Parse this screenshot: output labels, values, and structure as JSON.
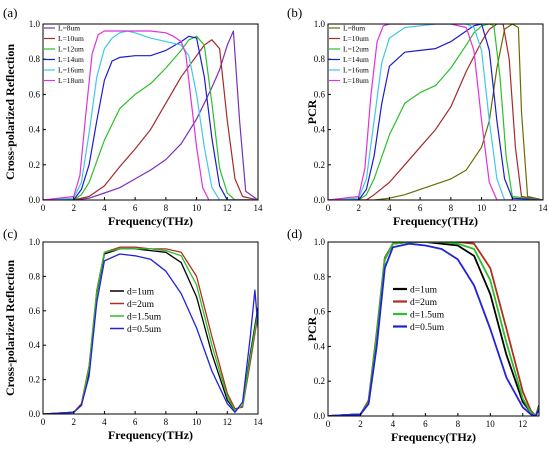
{
  "figure": {
    "panels": [
      "(a)",
      "(b)",
      "(c)",
      "(d)"
    ]
  },
  "chart_data": [
    {
      "panel": "(a)",
      "type": "line",
      "xlabel": "Frequency(THz)",
      "ylabel": "Cross-polarized Reflection",
      "xlim": [
        0,
        14
      ],
      "ylim": [
        0,
        1.0
      ],
      "xticks": [
        "0",
        "2",
        "4",
        "6",
        "8",
        "10",
        "12",
        "14"
      ],
      "yticks": [
        "0.0",
        "0.2",
        "0.4",
        "0.6",
        "0.8",
        "1.0"
      ],
      "legend_position": "top-left",
      "series": [
        {
          "name": "L=8um",
          "color": "#7b2fbe",
          "x": [
            0,
            2,
            3,
            4,
            5,
            6,
            7,
            8,
            9,
            10,
            10.5,
            11,
            11.5,
            12,
            12.4,
            12.8,
            13.2,
            14
          ],
          "y": [
            0,
            0,
            0.01,
            0.04,
            0.07,
            0.12,
            0.17,
            0.23,
            0.32,
            0.46,
            0.55,
            0.64,
            0.74,
            0.88,
            0.96,
            0.45,
            0.05,
            0
          ]
        },
        {
          "name": "L=10um",
          "color": "#a52a2a",
          "x": [
            0,
            2,
            3,
            4,
            5,
            6,
            7,
            8,
            9,
            10,
            10.5,
            11,
            11.5,
            12,
            12.5,
            13,
            14
          ],
          "y": [
            0,
            0,
            0.02,
            0.08,
            0.19,
            0.29,
            0.4,
            0.55,
            0.7,
            0.82,
            0.88,
            0.91,
            0.86,
            0.45,
            0.12,
            0.02,
            0
          ]
        },
        {
          "name": "L=12um",
          "color": "#2bbf2b",
          "x": [
            0,
            2,
            2.5,
            3,
            4,
            5,
            6,
            7,
            8,
            9,
            9.5,
            10,
            10.5,
            11,
            11.5,
            12,
            12.5,
            14
          ],
          "y": [
            0,
            0,
            0.03,
            0.1,
            0.34,
            0.52,
            0.6,
            0.66,
            0.75,
            0.85,
            0.91,
            0.93,
            0.88,
            0.55,
            0.18,
            0.04,
            0,
            0
          ]
        },
        {
          "name": "L=14um",
          "color": "#1c1ccc",
          "x": [
            0,
            2,
            2.5,
            3,
            3.5,
            4,
            4.5,
            5,
            6,
            7,
            8,
            9,
            9.5,
            10,
            10.5,
            11,
            11.5,
            12,
            14
          ],
          "y": [
            0,
            0,
            0.06,
            0.2,
            0.45,
            0.68,
            0.79,
            0.81,
            0.82,
            0.82,
            0.85,
            0.9,
            0.93,
            0.92,
            0.7,
            0.35,
            0.08,
            0,
            0
          ]
        },
        {
          "name": "L=16um",
          "color": "#40c8e8",
          "x": [
            0,
            2,
            2.5,
            3,
            3.5,
            4,
            4.5,
            5,
            5.5,
            6,
            7,
            8,
            9,
            9.5,
            10,
            10.5,
            11,
            11.5,
            14
          ],
          "y": [
            0,
            0.01,
            0.1,
            0.38,
            0.7,
            0.86,
            0.92,
            0.95,
            0.96,
            0.95,
            0.92,
            0.9,
            0.88,
            0.82,
            0.6,
            0.3,
            0.07,
            0,
            0
          ]
        },
        {
          "name": "L=18um",
          "color": "#dd33dd",
          "x": [
            0,
            2,
            2.4,
            2.8,
            3.2,
            3.6,
            4,
            5,
            6,
            7,
            8,
            8.5,
            9,
            9.3,
            9.6,
            10,
            10.4,
            10.8,
            14
          ],
          "y": [
            0,
            0.02,
            0.14,
            0.5,
            0.83,
            0.94,
            0.96,
            0.96,
            0.96,
            0.96,
            0.95,
            0.93,
            0.9,
            0.83,
            0.6,
            0.3,
            0.07,
            0,
            0
          ]
        }
      ]
    },
    {
      "panel": "(b)",
      "type": "line",
      "xlabel": "Frequency(THz)",
      "ylabel": "PCR",
      "xlim": [
        0,
        14
      ],
      "ylim": [
        0,
        1.0
      ],
      "xticks": [
        "0",
        "2",
        "4",
        "6",
        "8",
        "10",
        "12",
        "14"
      ],
      "yticks": [
        "0.0",
        "0.2",
        "0.4",
        "0.6",
        "0.8",
        "1.0"
      ],
      "legend_position": "top-left",
      "series": [
        {
          "name": "L=8um",
          "color": "#6b6b00",
          "x": [
            0,
            3,
            4,
            5,
            6,
            7,
            8,
            9,
            10,
            10.5,
            11,
            11.5,
            12,
            12.4,
            12.6,
            13,
            14
          ],
          "y": [
            0,
            0,
            0.01,
            0.03,
            0.06,
            0.09,
            0.12,
            0.17,
            0.3,
            0.45,
            0.75,
            0.97,
            1.0,
            0.98,
            0.5,
            0.02,
            0
          ]
        },
        {
          "name": "L=10um",
          "color": "#a52a2a",
          "x": [
            0,
            2.5,
            3,
            4,
            5,
            6,
            7,
            8,
            9,
            10,
            10.5,
            11,
            11.4,
            11.8,
            12.2,
            12.6,
            14
          ],
          "y": [
            0,
            0,
            0.03,
            0.1,
            0.2,
            0.3,
            0.4,
            0.53,
            0.73,
            0.9,
            0.97,
            1.0,
            1.0,
            0.8,
            0.3,
            0.02,
            0
          ]
        },
        {
          "name": "L=12um",
          "color": "#2bbf2b",
          "x": [
            0,
            2,
            2.5,
            3,
            4,
            5,
            6,
            7,
            8,
            9,
            9.5,
            10,
            10.5,
            10.8,
            11.2,
            11.6,
            12,
            14
          ],
          "y": [
            0,
            0,
            0.03,
            0.12,
            0.37,
            0.55,
            0.61,
            0.65,
            0.75,
            0.88,
            0.95,
            0.99,
            1.0,
            0.99,
            0.7,
            0.25,
            0.02,
            0
          ]
        },
        {
          "name": "L=14um",
          "color": "#1c1ccc",
          "x": [
            0,
            2,
            2.5,
            3,
            3.5,
            4,
            5,
            6,
            7,
            8,
            9,
            9.5,
            10,
            10.5,
            11,
            11.5,
            12,
            14
          ],
          "y": [
            0,
            0,
            0.06,
            0.25,
            0.55,
            0.76,
            0.84,
            0.85,
            0.86,
            0.9,
            0.96,
            0.99,
            1.0,
            0.85,
            0.45,
            0.12,
            0.01,
            0
          ]
        },
        {
          "name": "L=16um",
          "color": "#40c8e8",
          "x": [
            0,
            2,
            2.5,
            3,
            3.5,
            4,
            5,
            6,
            7,
            8,
            9,
            9.5,
            10,
            10.5,
            11,
            11.5,
            14
          ],
          "y": [
            0,
            0.01,
            0.12,
            0.45,
            0.78,
            0.92,
            0.98,
            0.99,
            1.0,
            1.0,
            1.0,
            0.98,
            0.85,
            0.45,
            0.12,
            0,
            0
          ]
        },
        {
          "name": "L=18um",
          "color": "#dd33dd",
          "x": [
            0,
            2,
            2.4,
            2.8,
            3.2,
            3.6,
            4,
            5,
            6,
            7,
            8,
            9,
            9.5,
            10,
            10.5,
            11,
            14
          ],
          "y": [
            0,
            0.02,
            0.18,
            0.6,
            0.9,
            0.99,
            1.0,
            1.0,
            1.0,
            1.0,
            1.0,
            0.98,
            0.85,
            0.45,
            0.1,
            0,
            0
          ]
        }
      ]
    },
    {
      "panel": "(c)",
      "type": "line",
      "xlabel": "Frequency(THz)",
      "ylabel": "Cross-polarized Reflection",
      "xlim": [
        0,
        14
      ],
      "ylim": [
        0,
        1.0
      ],
      "xticks": [
        "0",
        "2",
        "4",
        "6",
        "8",
        "10",
        "12",
        "14"
      ],
      "yticks": [
        "0.0",
        "0.2",
        "0.4",
        "0.6",
        "0.8",
        "1.0"
      ],
      "legend_position": "center",
      "series": [
        {
          "name": "d=1um",
          "color": "#000000",
          "x": [
            0,
            2,
            2.5,
            3,
            3.5,
            4,
            5,
            6,
            7,
            8,
            9,
            10,
            11,
            12,
            12.5,
            13,
            13.5,
            14
          ],
          "y": [
            0,
            0.01,
            0.05,
            0.25,
            0.7,
            0.93,
            0.96,
            0.96,
            0.95,
            0.94,
            0.88,
            0.68,
            0.35,
            0.08,
            0.02,
            0.05,
            0.35,
            0.62
          ]
        },
        {
          "name": "d=2um",
          "color": "#b03020",
          "x": [
            0,
            2,
            2.5,
            3,
            3.5,
            4,
            5,
            6,
            7,
            8,
            9,
            10,
            11,
            12,
            12.5,
            13,
            13.5,
            14
          ],
          "y": [
            0,
            0.01,
            0.06,
            0.28,
            0.72,
            0.94,
            0.97,
            0.97,
            0.96,
            0.96,
            0.94,
            0.8,
            0.45,
            0.12,
            0.03,
            0.04,
            0.3,
            0.58
          ]
        },
        {
          "name": "d=1.5um",
          "color": "#2bbf2b",
          "x": [
            0,
            2,
            2.5,
            3,
            3.5,
            4,
            5,
            6,
            7,
            8,
            9,
            10,
            11,
            12,
            12.5,
            13,
            13.5,
            14
          ],
          "y": [
            0,
            0.01,
            0.05,
            0.27,
            0.71,
            0.94,
            0.96,
            0.96,
            0.96,
            0.95,
            0.92,
            0.75,
            0.4,
            0.1,
            0.02,
            0.05,
            0.33,
            0.6
          ]
        },
        {
          "name": "d=0.5um",
          "color": "#2222dd",
          "x": [
            0,
            2,
            2.5,
            3,
            3.5,
            4,
            5,
            6,
            7,
            8,
            9,
            10,
            11,
            12,
            12.5,
            13,
            13.5,
            13.8,
            14
          ],
          "y": [
            0,
            0.01,
            0.05,
            0.22,
            0.65,
            0.89,
            0.93,
            0.92,
            0.9,
            0.83,
            0.7,
            0.5,
            0.25,
            0.06,
            0.01,
            0.07,
            0.45,
            0.72,
            0.5
          ]
        }
      ]
    },
    {
      "panel": "(d)",
      "type": "line",
      "xlabel": "Frequency(THz)",
      "ylabel": "PCR",
      "xlim": [
        0,
        13
      ],
      "ylim": [
        0,
        1.0
      ],
      "xticks": [
        "0",
        "2",
        "4",
        "6",
        "8",
        "10",
        "12"
      ],
      "yticks": [
        "0.0",
        "0.2",
        "0.4",
        "0.6",
        "0.8",
        "1.0"
      ],
      "legend_position": "center",
      "series": [
        {
          "name": "d=1um",
          "color": "#000000",
          "x": [
            0,
            2,
            2.5,
            3,
            3.5,
            4,
            5,
            6,
            7,
            8,
            9,
            10,
            11,
            12,
            12.5,
            12.8,
            13
          ],
          "y": [
            0,
            0.01,
            0.08,
            0.45,
            0.9,
            0.99,
            1.0,
            1.0,
            0.99,
            0.98,
            0.92,
            0.7,
            0.35,
            0.08,
            0.02,
            0,
            0.06
          ]
        },
        {
          "name": "d=2um",
          "color": "#b03020",
          "x": [
            0,
            2,
            2.5,
            3,
            3.5,
            4,
            5,
            6,
            7,
            8,
            9,
            10,
            11,
            12,
            12.5,
            12.8,
            13
          ],
          "y": [
            0,
            0.01,
            0.09,
            0.48,
            0.91,
            0.99,
            1.0,
            1.0,
            1.0,
            1.0,
            0.99,
            0.85,
            0.5,
            0.14,
            0.03,
            0,
            0.05
          ]
        },
        {
          "name": "d=1.5um",
          "color": "#2bbf2b",
          "x": [
            0,
            2,
            2.5,
            3,
            3.5,
            4,
            5,
            6,
            7,
            8,
            9,
            10,
            11,
            12,
            12.5,
            12.8,
            13
          ],
          "y": [
            0,
            0.01,
            0.08,
            0.46,
            0.9,
            0.99,
            1.0,
            1.0,
            1.0,
            0.99,
            0.96,
            0.78,
            0.42,
            0.1,
            0.02,
            0,
            0.05
          ]
        },
        {
          "name": "d=0.5um",
          "color": "#2222dd",
          "x": [
            0,
            2,
            2.5,
            3,
            3.5,
            4,
            5,
            6,
            7,
            8,
            9,
            10,
            11,
            12,
            12.5,
            12.8,
            13
          ],
          "y": [
            0,
            0.01,
            0.07,
            0.4,
            0.85,
            0.97,
            0.99,
            0.98,
            0.96,
            0.9,
            0.75,
            0.5,
            0.22,
            0.05,
            0.01,
            0,
            0.04
          ]
        }
      ]
    }
  ]
}
